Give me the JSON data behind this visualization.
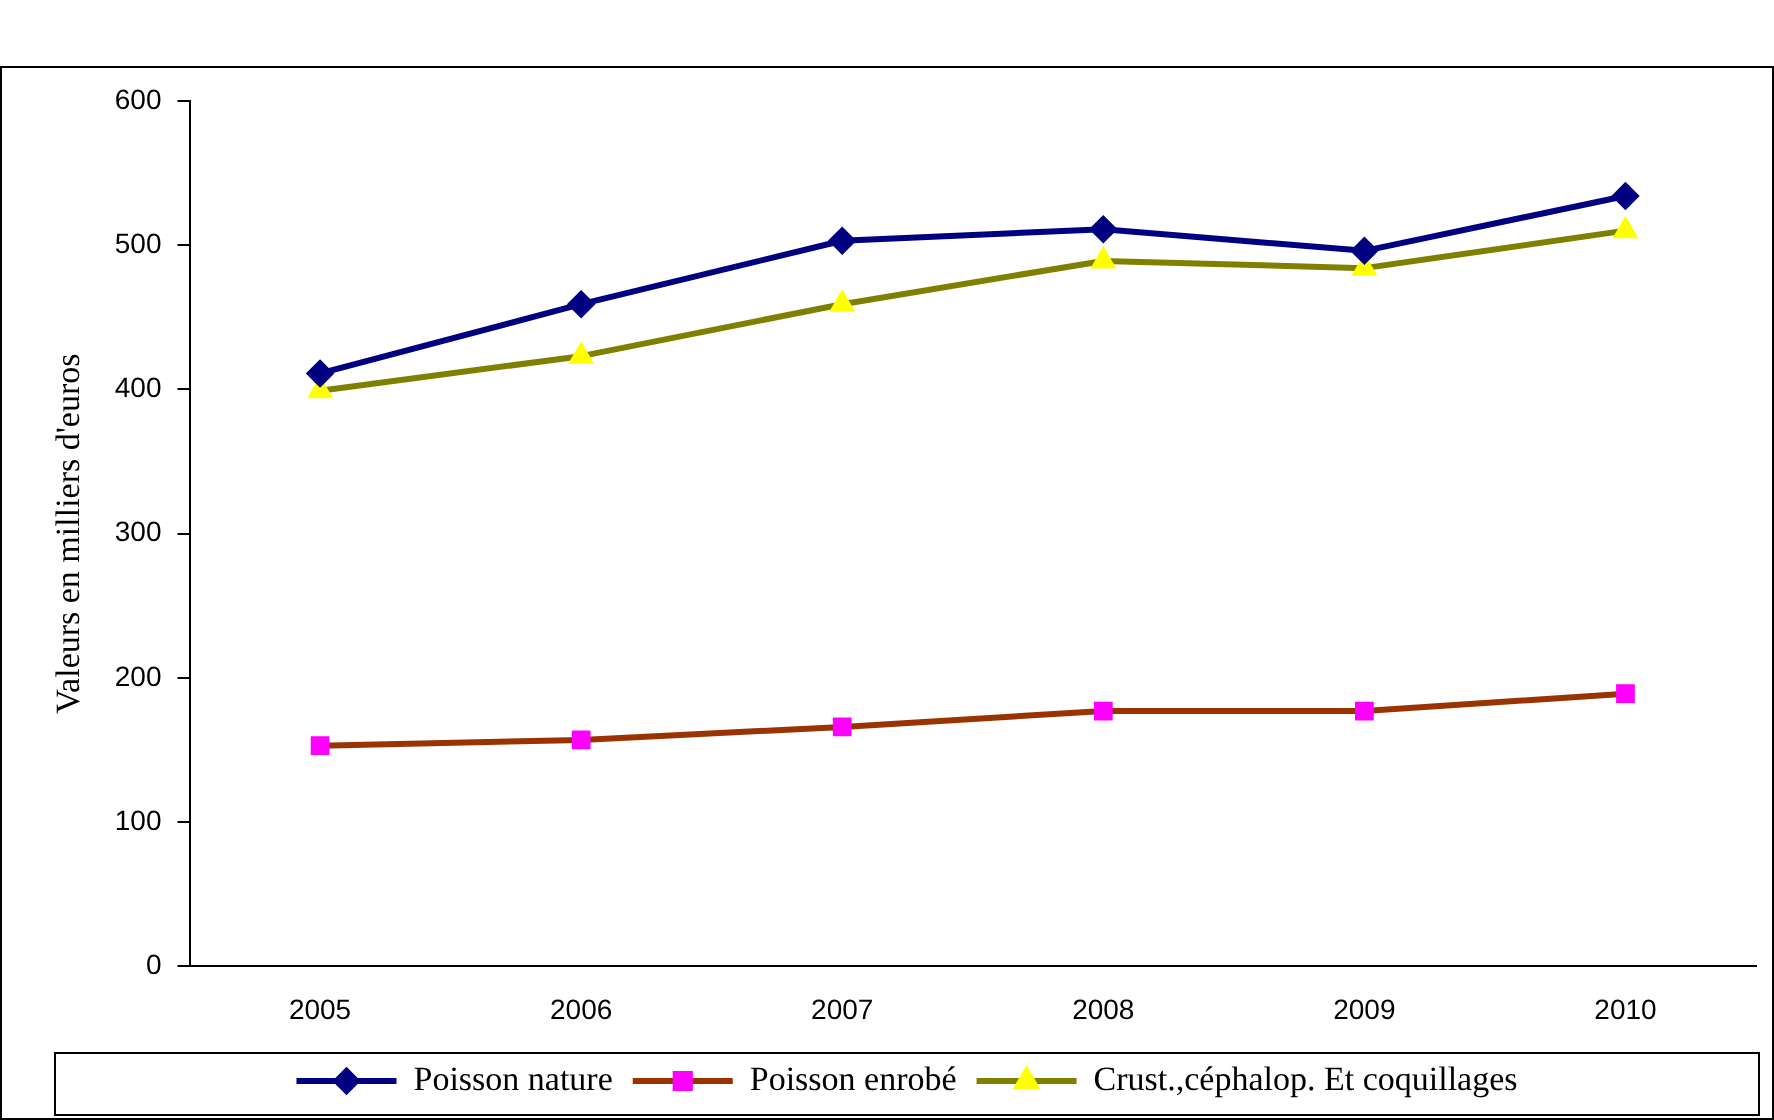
{
  "chart_data": {
    "type": "line",
    "ylabel": "Valeurs en milliers d'euros",
    "categories": [
      "2005",
      "2006",
      "2007",
      "2008",
      "2009",
      "2010"
    ],
    "series": [
      {
        "name": "Poisson nature",
        "color": "#000080",
        "colors": [
          "#000080",
          "#000080",
          "#000080",
          "#000080",
          "#000080",
          "#000080"
        ],
        "marker": "diamond",
        "values": [
          411,
          459,
          503,
          511,
          496,
          534
        ]
      },
      {
        "name": "Poisson enrobé",
        "color": "#993300",
        "colors": [
          "#ff00ff",
          "#ff00ff",
          "#ff00ff",
          "#ff00ff",
          "#ff00ff",
          "#ff00ff"
        ],
        "marker": "square",
        "values": [
          153,
          157,
          166,
          177,
          177,
          189
        ]
      },
      {
        "name": "Crust.,céphalop. Et coquillages",
        "color": "#808000",
        "colors": [
          "#ffff00",
          "#ffff00",
          "#ffff00",
          "#ffff00",
          "#ffff00",
          "#ffff00"
        ],
        "marker": "triangle",
        "values": [
          399,
          423,
          459,
          489,
          484,
          510
        ]
      }
    ],
    "ylim": [
      0,
      600
    ],
    "yticks": [
      0,
      100,
      200,
      300,
      400,
      500,
      600
    ],
    "grid": false,
    "legend": "bottom"
  }
}
